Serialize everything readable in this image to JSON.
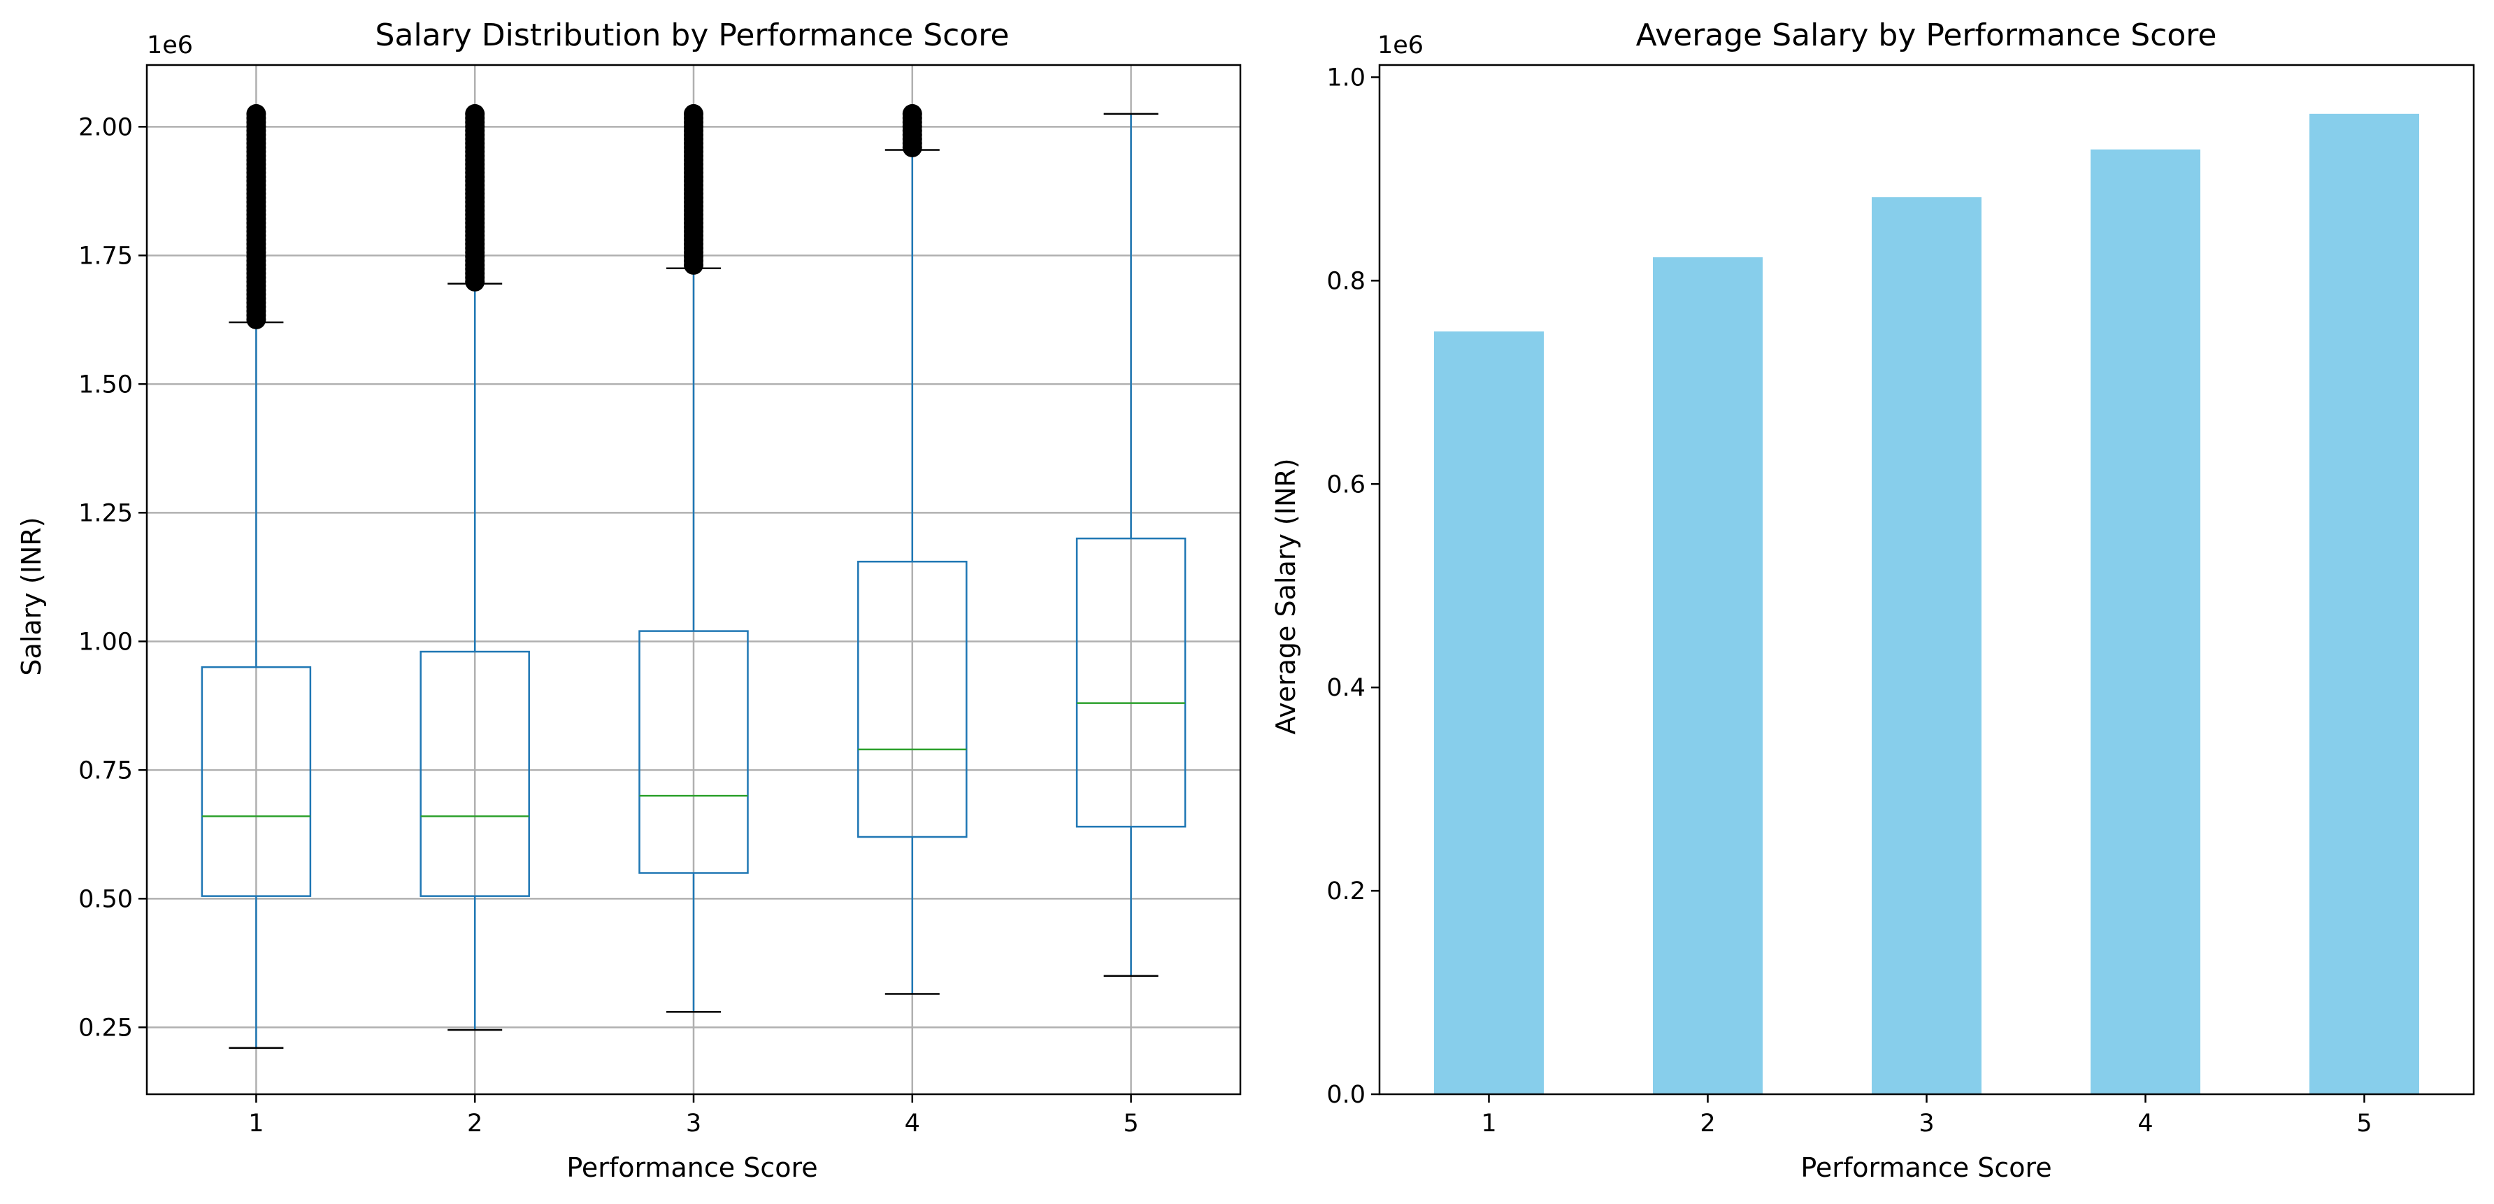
{
  "chart_data": [
    {
      "type": "box",
      "title": "Salary Distribution by Performance Score",
      "xlabel": "Performance Score",
      "ylabel": "Salary (INR)",
      "offset_text": "1e6",
      "categories": [
        "1",
        "2",
        "3",
        "4",
        "5"
      ],
      "ylim": [
        0.12,
        2.12
      ],
      "yticks": [
        "0.25",
        "0.50",
        "0.75",
        "1.00",
        "1.25",
        "1.50",
        "1.75",
        "2.00"
      ],
      "ytick_values": [
        0.25,
        0.5,
        0.75,
        1.0,
        1.25,
        1.5,
        1.75,
        2.0
      ],
      "grid": true,
      "colors": {
        "box": "#1f77b4",
        "median": "#2ca02c",
        "cap": "#000000",
        "flier": "#000000",
        "grid": "#b0b0b0"
      },
      "boxes": [
        {
          "whisker_low": 0.21,
          "q1": 0.505,
          "median": 0.66,
          "q3": 0.95,
          "whisker_high": 1.62,
          "outliers_from": 1.62,
          "outliers_to": 2.025
        },
        {
          "whisker_low": 0.245,
          "q1": 0.505,
          "median": 0.66,
          "q3": 0.98,
          "whisker_high": 1.695,
          "outliers_from": 1.695,
          "outliers_to": 2.025
        },
        {
          "whisker_low": 0.28,
          "q1": 0.55,
          "median": 0.7,
          "q3": 1.02,
          "whisker_high": 1.725,
          "outliers_from": 1.725,
          "outliers_to": 2.025
        },
        {
          "whisker_low": 0.315,
          "q1": 0.62,
          "median": 0.79,
          "q3": 1.155,
          "whisker_high": 1.955,
          "outliers_from": 1.955,
          "outliers_to": 2.025
        },
        {
          "whisker_low": 0.35,
          "q1": 0.64,
          "median": 0.88,
          "q3": 1.2,
          "whisker_high": 2.025,
          "outliers_from": null,
          "outliers_to": null
        }
      ]
    },
    {
      "type": "bar",
      "title": "Average Salary by Performance Score",
      "xlabel": "Performance Score",
      "ylabel": "Average Salary (INR)",
      "offset_text": "1e6",
      "categories": [
        "1",
        "2",
        "3",
        "4",
        "5"
      ],
      "values": [
        0.75,
        0.823,
        0.882,
        0.929,
        0.964
      ],
      "ylim": [
        0.0,
        1.012
      ],
      "yticks": [
        "0.0",
        "0.2",
        "0.4",
        "0.6",
        "0.8",
        "1.0"
      ],
      "ytick_values": [
        0.0,
        0.2,
        0.4,
        0.6,
        0.8,
        1.0
      ],
      "grid": false,
      "colors": {
        "bar": "#87ceeb"
      }
    }
  ]
}
